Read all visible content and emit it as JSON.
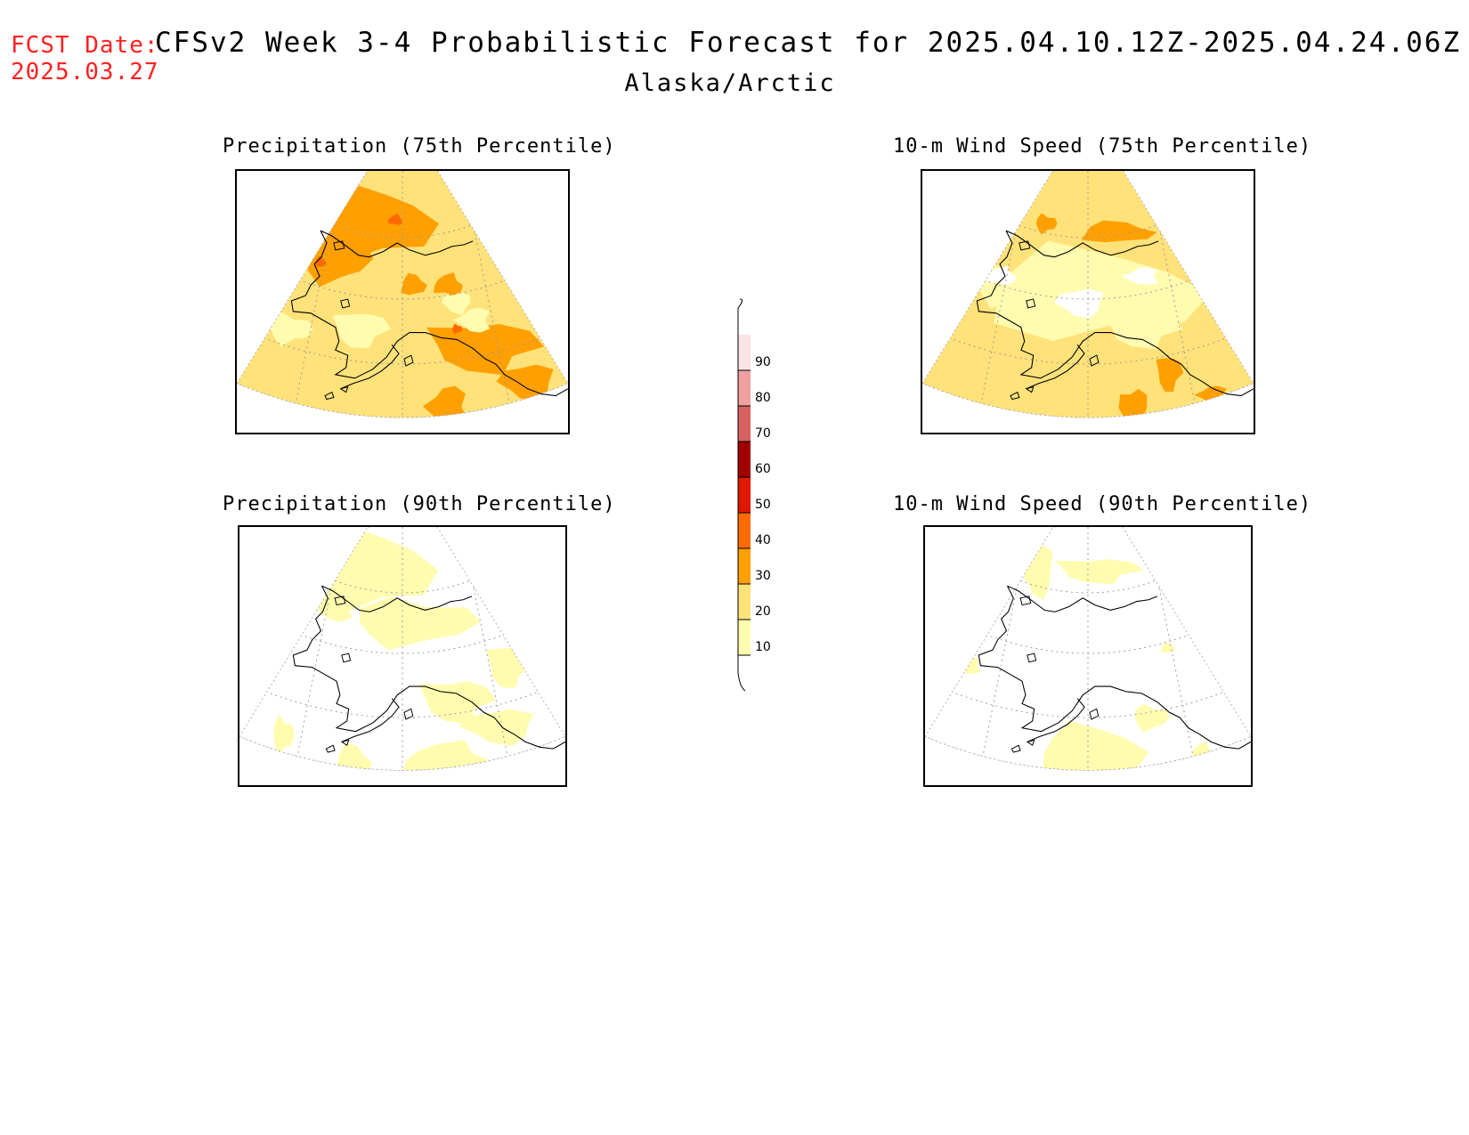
{
  "header": {
    "fcst_label": "FCST Date:",
    "fcst_date": "2025.03.27",
    "title": "CFSv2 Week 3-4 Probabilistic Forecast for 2025.04.10.12Z-2025.04.24.06Z",
    "subtitle": "Alaska/Arctic"
  },
  "panels": [
    {
      "title": "Precipitation (75th Percentile)",
      "level": "high"
    },
    {
      "title": "10-m Wind Speed (75th Percentile)",
      "level": "mid"
    },
    {
      "title": "Precipitation (90th Percentile)",
      "level": "low"
    },
    {
      "title": "10-m Wind Speed (90th Percentile)",
      "level": "verylow"
    }
  ],
  "colorbar": {
    "labels": [
      "10",
      "20",
      "30",
      "40",
      "50",
      "60",
      "70",
      "80",
      "90"
    ],
    "colors": [
      "#fffcb0",
      "#ffe27a",
      "#ffa000",
      "#ff6a00",
      "#e01800",
      "#a00000",
      "#d86060",
      "#f0a0a0",
      "#fde4e4"
    ]
  }
}
